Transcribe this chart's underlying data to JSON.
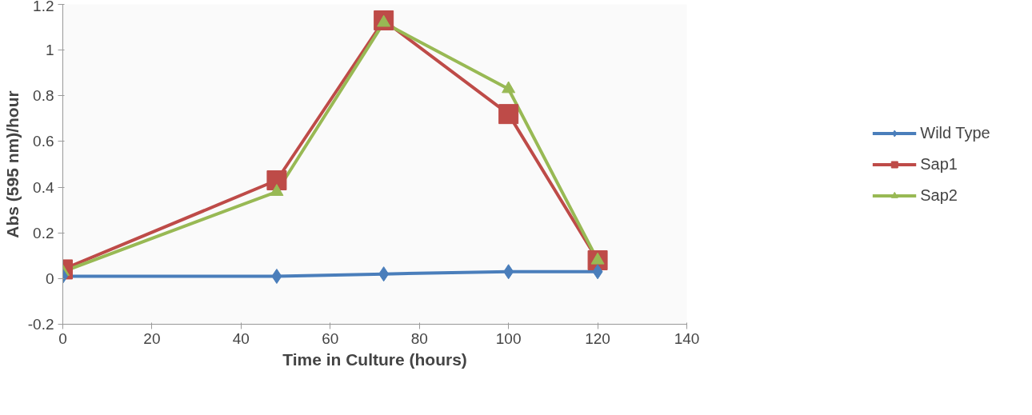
{
  "chart_data": {
    "type": "line",
    "xlabel": "Time in Culture (hours)",
    "ylabel": "Abs (595 nm)/hour",
    "x": [
      0,
      48,
      72,
      100,
      120
    ],
    "series": [
      {
        "name": "Wild Type",
        "color": "#4a7ebb",
        "marker": "diamond",
        "values": [
          0.01,
          0.01,
          0.02,
          0.03,
          0.03
        ]
      },
      {
        "name": "Sap1",
        "color": "#be4b48",
        "marker": "square",
        "values": [
          0.04,
          0.43,
          1.13,
          0.72,
          0.08
        ]
      },
      {
        "name": "Sap2",
        "color": "#98b954",
        "marker": "triangle",
        "values": [
          0.03,
          0.38,
          1.12,
          0.83,
          0.08
        ]
      }
    ],
    "xlim": [
      0,
      140
    ],
    "xticks": [
      0,
      20,
      40,
      60,
      80,
      100,
      120,
      140
    ],
    "ylim": [
      -0.2,
      1.2
    ],
    "yticks": [
      -0.2,
      0,
      0.2,
      0.4,
      0.6,
      0.8,
      1,
      1.2
    ],
    "grid": false,
    "legend": "right"
  }
}
